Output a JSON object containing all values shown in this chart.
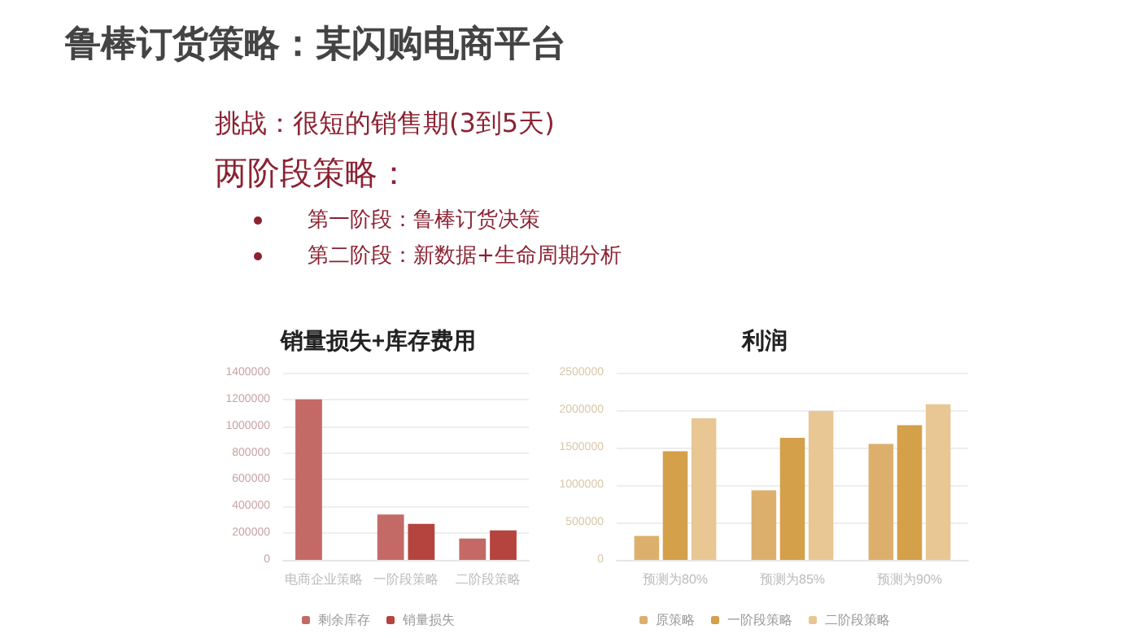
{
  "chart_data": [
    {
      "type": "other",
      "title": "鲁棒订货策略：某闪购电商平台",
      "annotations": [
        "挑战：很短的销售期(3到5天)",
        "两阶段策略：",
        "第一阶段：鲁棒订货决策",
        "第二阶段：新数据+生命周期分析"
      ]
    },
    {
      "type": "bar",
      "title": "销量损失+库存费用",
      "categories": [
        "电商企业策略",
        "一阶段策略",
        "二阶段策略"
      ],
      "series": [
        {
          "name": "剩余库存",
          "color": "#c46a66",
          "values": [
            1200000,
            340000,
            160000
          ]
        },
        {
          "name": "销量损失",
          "color": "#b5443f",
          "values": [
            null,
            270000,
            220000
          ]
        }
      ],
      "ylim": [
        0,
        1400000
      ],
      "yticks": [
        0,
        200000,
        400000,
        600000,
        800000,
        1000000,
        1200000,
        1400000
      ],
      "grid": "y",
      "legend": "bottom"
    },
    {
      "type": "bar",
      "title": "利润",
      "categories": [
        "预测为80%",
        "预测为85%",
        "预测为90%"
      ],
      "series": [
        {
          "name": "原策略",
          "color": "#dcb06c",
          "values": [
            320000,
            930000,
            1550000
          ]
        },
        {
          "name": "一阶段策略",
          "color": "#d4a04a",
          "values": [
            1450000,
            1630000,
            1800000
          ]
        },
        {
          "name": "二阶段策略",
          "color": "#e8c794",
          "values": [
            1890000,
            1990000,
            2080000
          ]
        }
      ],
      "ylim": [
        0,
        2500000
      ],
      "yticks": [
        0,
        500000,
        1000000,
        1500000,
        2000000,
        2500000
      ],
      "grid": "y",
      "legend": "bottom"
    }
  ]
}
